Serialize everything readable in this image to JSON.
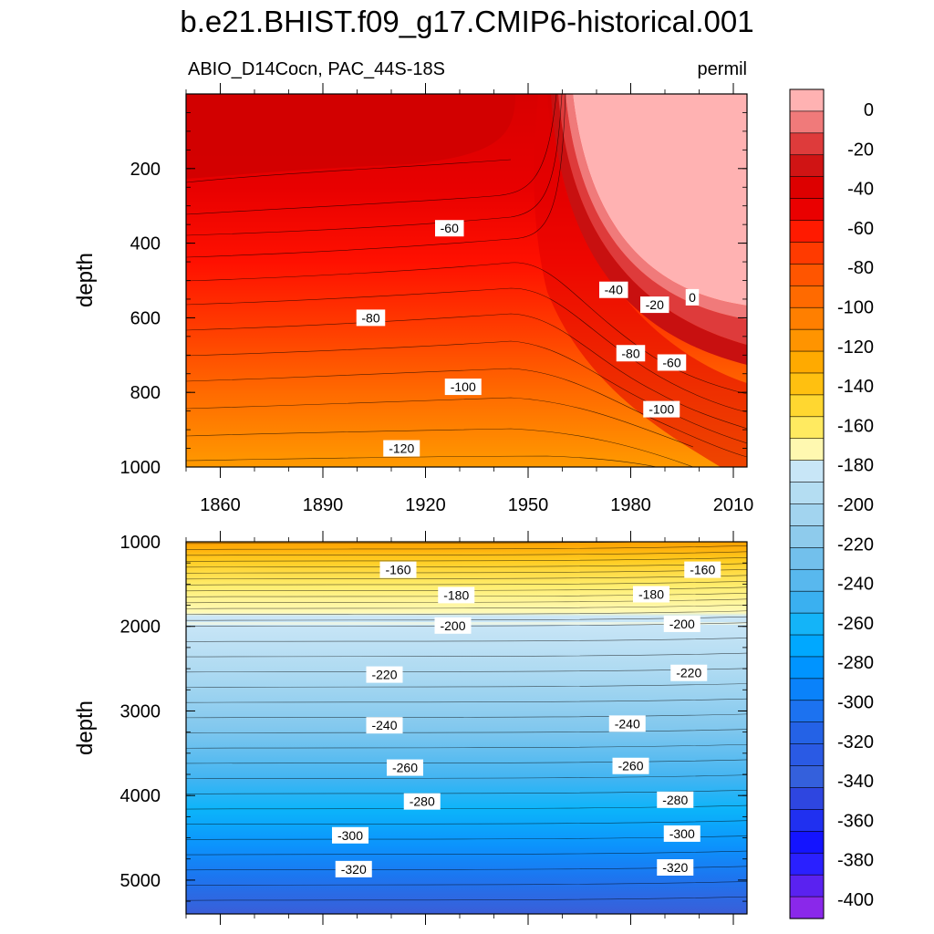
{
  "chart_data": {
    "type": "heatmap",
    "title": "b.e21.BHIST.f09_g17.CMIP6-historical.001",
    "subtitle_left": "ABIO_D14Cocn, PAC_44S-18S",
    "subtitle_right": "permil",
    "xlabel": "",
    "ylabel": "depth",
    "xlim": [
      1850,
      2014
    ],
    "x_ticks": [
      "1860",
      "1890",
      "1920",
      "1950",
      "1980",
      "2010"
    ],
    "panels": [
      {
        "name": "upper",
        "ylim": [
          0,
          1000
        ],
        "y_ticks": [
          "200",
          "400",
          "600",
          "800",
          "1000"
        ],
        "contour_labels": [
          {
            "text": "-60",
            "x": 1927,
            "y": 360
          },
          {
            "text": "-80",
            "x": 1904,
            "y": 600
          },
          {
            "text": "-100",
            "x": 1931,
            "y": 785
          },
          {
            "text": "-120",
            "x": 1913,
            "y": 950
          },
          {
            "text": "-40",
            "x": 1975,
            "y": 525
          },
          {
            "text": "-20",
            "x": 1987,
            "y": 565
          },
          {
            "text": "0",
            "x": 1998,
            "y": 545
          },
          {
            "text": "-80",
            "x": 1980,
            "y": 695
          },
          {
            "text": "-60",
            "x": 1992,
            "y": 720
          },
          {
            "text": "-100",
            "x": 1989,
            "y": 845
          }
        ]
      },
      {
        "name": "lower",
        "ylim": [
          1000,
          5400
        ],
        "y_ticks": [
          "1000",
          "2000",
          "3000",
          "4000",
          "5000"
        ],
        "contour_labels": [
          {
            "text": "-160",
            "x": 1912,
            "y": 1330
          },
          {
            "text": "-160",
            "x": 2001,
            "y": 1330
          },
          {
            "text": "-180",
            "x": 1929,
            "y": 1630
          },
          {
            "text": "-180",
            "x": 1986,
            "y": 1620
          },
          {
            "text": "-200",
            "x": 1928,
            "y": 1990
          },
          {
            "text": "-200",
            "x": 1995,
            "y": 1970
          },
          {
            "text": "-220",
            "x": 1908,
            "y": 2570
          },
          {
            "text": "-220",
            "x": 1997,
            "y": 2550
          },
          {
            "text": "-240",
            "x": 1908,
            "y": 3170
          },
          {
            "text": "-240",
            "x": 1979,
            "y": 3150
          },
          {
            "text": "-260",
            "x": 1914,
            "y": 3670
          },
          {
            "text": "-260",
            "x": 1980,
            "y": 3650
          },
          {
            "text": "-280",
            "x": 1919,
            "y": 4070
          },
          {
            "text": "-280",
            "x": 1993,
            "y": 4050
          },
          {
            "text": "-300",
            "x": 1898,
            "y": 4470
          },
          {
            "text": "-300",
            "x": 1995,
            "y": 4450
          },
          {
            "text": "-320",
            "x": 1899,
            "y": 4870
          },
          {
            "text": "-320",
            "x": 1993,
            "y": 4850
          }
        ]
      }
    ],
    "colorbar": {
      "levels": [
        "0",
        "-20",
        "-40",
        "-60",
        "-80",
        "-100",
        "-120",
        "-140",
        "-160",
        "-180",
        "-200",
        "-220",
        "-240",
        "-260",
        "-280",
        "-300",
        "-320",
        "-340",
        "-360",
        "-380",
        "-400"
      ],
      "colors": [
        "#FFB2B2",
        "#F07A7A",
        "#DE3B3B",
        "#D01414",
        "#DD0000",
        "#EA0000",
        "#FF1A00",
        "#FF3A00",
        "#FF5500",
        "#FF6A00",
        "#FF7F00",
        "#FF9400",
        "#FFAA00",
        "#FFC010",
        "#FFD730",
        "#FFEA60",
        "#FFF8B0",
        "#C8E6F7",
        "#B4DDF2",
        "#A2D4EF",
        "#8ECBEC",
        "#72C0EC",
        "#58B8EE",
        "#3AB0F0",
        "#14B4F8",
        "#00A8FF",
        "#0094FF",
        "#0A82FA",
        "#1C72F0",
        "#2462E6",
        "#2A5AE4",
        "#3460DC",
        "#2E46E0",
        "#2030F0",
        "#1414FF",
        "#2A20FF",
        "#5A22F0",
        "#8A28EA"
      ]
    }
  }
}
